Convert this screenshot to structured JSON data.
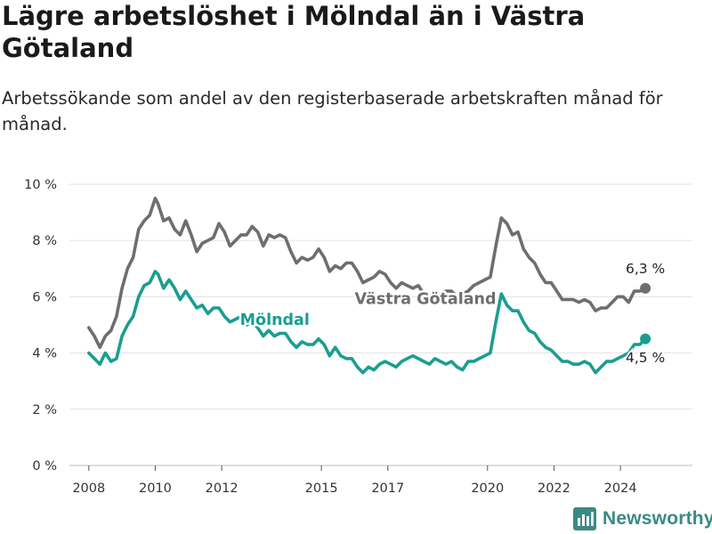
{
  "title": "Lägre arbetslöshet i Mölndal än i Västra Götaland",
  "subtitle": "Arbetssökande som andel av den registerbaserade arbetskraften månad för månad.",
  "brand": {
    "name": "Newsworthy",
    "icon": "bar-chart-logo-icon",
    "color": "#3a8a82"
  },
  "chart_data": {
    "type": "line",
    "title": "Lägre arbetslöshet i Mölndal än i Västra Götaland",
    "subtitle": "Arbetssökande som andel av den registerbaserade arbetskraften månad för månad.",
    "xlabel": "",
    "ylabel": "",
    "x_ticks": [
      "2008",
      "2010",
      "2012",
      "2015",
      "2017",
      "2020",
      "2022",
      "2024"
    ],
    "y_ticks": [
      "0 %",
      "2 %",
      "4 %",
      "6 %",
      "8 %",
      "10 %"
    ],
    "ylim": [
      0,
      10
    ],
    "xlim": [
      "2007-06",
      "2026-03"
    ],
    "grid": true,
    "legend": "none",
    "series": [
      {
        "name": "Västra Götaland",
        "color": "#6e6e6e",
        "end_label": "6,3 %",
        "points": [
          [
            "2008-01",
            4.9
          ],
          [
            "2008-03",
            4.6
          ],
          [
            "2008-05",
            4.2
          ],
          [
            "2008-07",
            4.6
          ],
          [
            "2008-09",
            4.8
          ],
          [
            "2008-11",
            5.3
          ],
          [
            "2009-01",
            6.3
          ],
          [
            "2009-03",
            7.0
          ],
          [
            "2009-05",
            7.4
          ],
          [
            "2009-07",
            8.4
          ],
          [
            "2009-09",
            8.7
          ],
          [
            "2009-11",
            8.9
          ],
          [
            "2010-01",
            9.5
          ],
          [
            "2010-02",
            9.3
          ],
          [
            "2010-04",
            8.7
          ],
          [
            "2010-06",
            8.8
          ],
          [
            "2010-08",
            8.4
          ],
          [
            "2010-10",
            8.2
          ],
          [
            "2010-12",
            8.7
          ],
          [
            "2011-02",
            8.2
          ],
          [
            "2011-04",
            7.6
          ],
          [
            "2011-06",
            7.9
          ],
          [
            "2011-08",
            8.0
          ],
          [
            "2011-10",
            8.1
          ],
          [
            "2011-12",
            8.6
          ],
          [
            "2012-02",
            8.3
          ],
          [
            "2012-04",
            7.8
          ],
          [
            "2012-06",
            8.0
          ],
          [
            "2012-08",
            8.2
          ],
          [
            "2012-10",
            8.2
          ],
          [
            "2012-12",
            8.5
          ],
          [
            "2013-02",
            8.3
          ],
          [
            "2013-04",
            7.8
          ],
          [
            "2013-06",
            8.2
          ],
          [
            "2013-08",
            8.1
          ],
          [
            "2013-10",
            8.2
          ],
          [
            "2013-12",
            8.1
          ],
          [
            "2014-02",
            7.6
          ],
          [
            "2014-04",
            7.2
          ],
          [
            "2014-06",
            7.4
          ],
          [
            "2014-08",
            7.3
          ],
          [
            "2014-10",
            7.4
          ],
          [
            "2014-12",
            7.7
          ],
          [
            "2015-02",
            7.4
          ],
          [
            "2015-04",
            6.9
          ],
          [
            "2015-06",
            7.1
          ],
          [
            "2015-08",
            7.0
          ],
          [
            "2015-10",
            7.2
          ],
          [
            "2015-12",
            7.2
          ],
          [
            "2016-02",
            6.9
          ],
          [
            "2016-04",
            6.5
          ],
          [
            "2016-06",
            6.6
          ],
          [
            "2016-08",
            6.7
          ],
          [
            "2016-10",
            6.9
          ],
          [
            "2016-12",
            6.8
          ],
          [
            "2017-02",
            6.5
          ],
          [
            "2017-04",
            6.3
          ],
          [
            "2017-06",
            6.5
          ],
          [
            "2017-08",
            6.4
          ],
          [
            "2017-10",
            6.3
          ],
          [
            "2017-12",
            6.4
          ],
          [
            "2018-02",
            6.1
          ],
          [
            "2018-04",
            5.9
          ],
          [
            "2018-06",
            6.1
          ],
          [
            "2018-08",
            6.1
          ],
          [
            "2018-10",
            6.2
          ],
          [
            "2018-12",
            6.2
          ],
          [
            "2019-02",
            6.0
          ],
          [
            "2019-04",
            6.1
          ],
          [
            "2019-06",
            6.2
          ],
          [
            "2019-08",
            6.4
          ],
          [
            "2019-10",
            6.5
          ],
          [
            "2019-12",
            6.6
          ],
          [
            "2020-02",
            6.7
          ],
          [
            "2020-04",
            7.8
          ],
          [
            "2020-06",
            8.8
          ],
          [
            "2020-08",
            8.6
          ],
          [
            "2020-10",
            8.2
          ],
          [
            "2020-12",
            8.3
          ],
          [
            "2021-02",
            7.7
          ],
          [
            "2021-04",
            7.4
          ],
          [
            "2021-06",
            7.2
          ],
          [
            "2021-08",
            6.8
          ],
          [
            "2021-10",
            6.5
          ],
          [
            "2021-12",
            6.5
          ],
          [
            "2022-02",
            6.2
          ],
          [
            "2022-04",
            5.9
          ],
          [
            "2022-06",
            5.9
          ],
          [
            "2022-08",
            5.9
          ],
          [
            "2022-10",
            5.8
          ],
          [
            "2022-12",
            5.9
          ],
          [
            "2023-02",
            5.8
          ],
          [
            "2023-04",
            5.5
          ],
          [
            "2023-06",
            5.6
          ],
          [
            "2023-08",
            5.6
          ],
          [
            "2023-10",
            5.8
          ],
          [
            "2023-12",
            6.0
          ],
          [
            "2024-02",
            6.0
          ],
          [
            "2024-04",
            5.8
          ],
          [
            "2024-06",
            6.2
          ],
          [
            "2024-08",
            6.2
          ],
          [
            "2024-10",
            6.3
          ]
        ]
      },
      {
        "name": "Mölndal",
        "color": "#1a9e90",
        "end_label": "4,5 %",
        "points": [
          [
            "2008-01",
            4.0
          ],
          [
            "2008-03",
            3.8
          ],
          [
            "2008-05",
            3.6
          ],
          [
            "2008-07",
            4.0
          ],
          [
            "2008-09",
            3.7
          ],
          [
            "2008-11",
            3.8
          ],
          [
            "2009-01",
            4.6
          ],
          [
            "2009-03",
            5.0
          ],
          [
            "2009-05",
            5.3
          ],
          [
            "2009-07",
            6.0
          ],
          [
            "2009-09",
            6.4
          ],
          [
            "2009-11",
            6.5
          ],
          [
            "2010-01",
            6.9
          ],
          [
            "2010-02",
            6.8
          ],
          [
            "2010-04",
            6.3
          ],
          [
            "2010-06",
            6.6
          ],
          [
            "2010-08",
            6.3
          ],
          [
            "2010-10",
            5.9
          ],
          [
            "2010-12",
            6.2
          ],
          [
            "2011-02",
            5.9
          ],
          [
            "2011-04",
            5.6
          ],
          [
            "2011-06",
            5.7
          ],
          [
            "2011-08",
            5.4
          ],
          [
            "2011-10",
            5.6
          ],
          [
            "2011-12",
            5.6
          ],
          [
            "2012-02",
            5.3
          ],
          [
            "2012-04",
            5.1
          ],
          [
            "2012-06",
            5.2
          ],
          [
            "2012-08",
            5.3
          ],
          [
            "2012-10",
            5.0
          ],
          [
            "2012-12",
            5.1
          ],
          [
            "2013-02",
            4.9
          ],
          [
            "2013-04",
            4.6
          ],
          [
            "2013-06",
            4.8
          ],
          [
            "2013-08",
            4.6
          ],
          [
            "2013-10",
            4.7
          ],
          [
            "2013-12",
            4.7
          ],
          [
            "2014-02",
            4.4
          ],
          [
            "2014-04",
            4.2
          ],
          [
            "2014-06",
            4.4
          ],
          [
            "2014-08",
            4.3
          ],
          [
            "2014-10",
            4.3
          ],
          [
            "2014-12",
            4.5
          ],
          [
            "2015-02",
            4.3
          ],
          [
            "2015-04",
            3.9
          ],
          [
            "2015-06",
            4.2
          ],
          [
            "2015-08",
            3.9
          ],
          [
            "2015-10",
            3.8
          ],
          [
            "2015-12",
            3.8
          ],
          [
            "2016-02",
            3.5
          ],
          [
            "2016-04",
            3.3
          ],
          [
            "2016-06",
            3.5
          ],
          [
            "2016-08",
            3.4
          ],
          [
            "2016-10",
            3.6
          ],
          [
            "2016-12",
            3.7
          ],
          [
            "2017-02",
            3.6
          ],
          [
            "2017-04",
            3.5
          ],
          [
            "2017-06",
            3.7
          ],
          [
            "2017-08",
            3.8
          ],
          [
            "2017-10",
            3.9
          ],
          [
            "2017-12",
            3.8
          ],
          [
            "2018-02",
            3.7
          ],
          [
            "2018-04",
            3.6
          ],
          [
            "2018-06",
            3.8
          ],
          [
            "2018-08",
            3.7
          ],
          [
            "2018-10",
            3.6
          ],
          [
            "2018-12",
            3.7
          ],
          [
            "2019-02",
            3.5
          ],
          [
            "2019-04",
            3.4
          ],
          [
            "2019-06",
            3.7
          ],
          [
            "2019-08",
            3.7
          ],
          [
            "2019-10",
            3.8
          ],
          [
            "2019-12",
            3.9
          ],
          [
            "2020-02",
            4.0
          ],
          [
            "2020-04",
            5.1
          ],
          [
            "2020-06",
            6.1
          ],
          [
            "2020-08",
            5.7
          ],
          [
            "2020-10",
            5.5
          ],
          [
            "2020-12",
            5.5
          ],
          [
            "2021-02",
            5.1
          ],
          [
            "2021-04",
            4.8
          ],
          [
            "2021-06",
            4.7
          ],
          [
            "2021-08",
            4.4
          ],
          [
            "2021-10",
            4.2
          ],
          [
            "2021-12",
            4.1
          ],
          [
            "2022-02",
            3.9
          ],
          [
            "2022-04",
            3.7
          ],
          [
            "2022-06",
            3.7
          ],
          [
            "2022-08",
            3.6
          ],
          [
            "2022-10",
            3.6
          ],
          [
            "2022-12",
            3.7
          ],
          [
            "2023-02",
            3.6
          ],
          [
            "2023-04",
            3.3
          ],
          [
            "2023-06",
            3.5
          ],
          [
            "2023-08",
            3.7
          ],
          [
            "2023-10",
            3.7
          ],
          [
            "2023-12",
            3.8
          ],
          [
            "2024-02",
            3.9
          ],
          [
            "2024-04",
            4.0
          ],
          [
            "2024-06",
            4.3
          ],
          [
            "2024-08",
            4.3
          ],
          [
            "2024-10",
            4.5
          ]
        ]
      }
    ]
  }
}
